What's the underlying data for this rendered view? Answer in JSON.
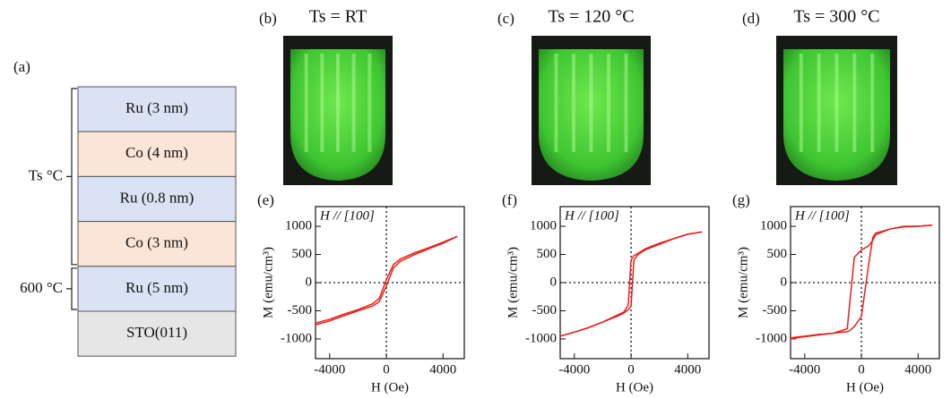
{
  "panels": {
    "a": "(a)"
  },
  "stack": {
    "layers": [
      {
        "label": "Ru (3 nm)",
        "color": "#dae3f3"
      },
      {
        "label": "Co (4 nm)",
        "color": "#fbe5d6"
      },
      {
        "label": "Ru (0.8 nm)",
        "color": "#dae3f3"
      },
      {
        "label": "Co (3 nm)",
        "color": "#fbe5d6"
      },
      {
        "label": "Ru (5 nm)",
        "color": "#dae3f3"
      },
      {
        "label": "STO(011)",
        "color": "#e7e6e6"
      }
    ],
    "brackets": [
      {
        "label": "Ts °C"
      },
      {
        "label": "600 °C"
      }
    ]
  },
  "rheed": [
    {
      "panel": "(b)",
      "title": "Ts = RT"
    },
    {
      "panel": "(c)",
      "title": "Ts = 120 °C"
    },
    {
      "panel": "(d)",
      "title": "Ts = 300 °C"
    }
  ],
  "chart_data": [
    {
      "type": "line",
      "panel": "(e)",
      "annotation": "H // [100]",
      "xlabel": "H (Oe)",
      "ylabel": "M (emu/cm³)",
      "x": [
        -5000,
        -4000,
        -3000,
        -2000,
        -1000,
        -500,
        0,
        500,
        1000,
        2000,
        3000,
        4000,
        5000
      ],
      "series": [
        {
          "color": "#e8211c",
          "values": [
            -720,
            -650,
            -560,
            -480,
            -380,
            -280,
            50,
            320,
            420,
            530,
            620,
            720,
            820
          ]
        },
        {
          "color": "#e8211c",
          "values": [
            -750,
            -680,
            -590,
            -500,
            -420,
            -340,
            -60,
            260,
            380,
            500,
            600,
            700,
            820
          ]
        }
      ],
      "xlim": [
        -5000,
        5500
      ],
      "ylim": [
        -1350,
        1350
      ],
      "xticks": [
        -4000,
        0,
        4000
      ],
      "yticks": [
        1000,
        500,
        0,
        -500,
        -1000
      ]
    },
    {
      "type": "line",
      "panel": "(f)",
      "annotation": "H // [100]",
      "xlabel": "H (Oe)",
      "ylabel": "M (emu/cm³)",
      "x": [
        -5000,
        -4000,
        -3000,
        -2000,
        -1000,
        -500,
        -200,
        0,
        200,
        500,
        1000,
        2000,
        3000,
        4000,
        5000
      ],
      "series": [
        {
          "color": "#e8211c",
          "values": [
            -950,
            -880,
            -800,
            -700,
            -580,
            -520,
            -400,
            400,
            480,
            520,
            600,
            700,
            780,
            860,
            900
          ]
        },
        {
          "color": "#e8211c",
          "values": [
            -950,
            -880,
            -800,
            -700,
            -600,
            -540,
            -480,
            -420,
            400,
            500,
            580,
            680,
            780,
            860,
            900
          ]
        }
      ],
      "xlim": [
        -5000,
        5500
      ],
      "ylim": [
        -1350,
        1350
      ],
      "xticks": [
        -4000,
        0,
        4000
      ],
      "yticks": [
        1000,
        500,
        0,
        -500,
        -1000
      ]
    },
    {
      "type": "line",
      "panel": "(g)",
      "annotation": "H // [100]",
      "xlabel": "H (Oe)",
      "ylabel": "M (emu/cm³)",
      "x": [
        -5000,
        -4000,
        -3000,
        -2000,
        -1000,
        -800,
        -500,
        0,
        500,
        800,
        1000,
        2000,
        3000,
        4000,
        5000
      ],
      "series": [
        {
          "color": "#e8211c",
          "values": [
            -980,
            -950,
            -920,
            -900,
            -820,
            -300,
            450,
            580,
            650,
            750,
            850,
            950,
            1000,
            1000,
            1020
          ]
        },
        {
          "color": "#e8211c",
          "values": [
            -1000,
            -960,
            -930,
            -900,
            -870,
            -850,
            -780,
            -600,
            300,
            800,
            880,
            950,
            990,
            1000,
            1020
          ]
        }
      ],
      "xlim": [
        -5000,
        5500
      ],
      "ylim": [
        -1350,
        1350
      ],
      "xticks": [
        -4000,
        0,
        4000
      ],
      "yticks": [
        1000,
        500,
        0,
        -500,
        -1000
      ]
    }
  ]
}
